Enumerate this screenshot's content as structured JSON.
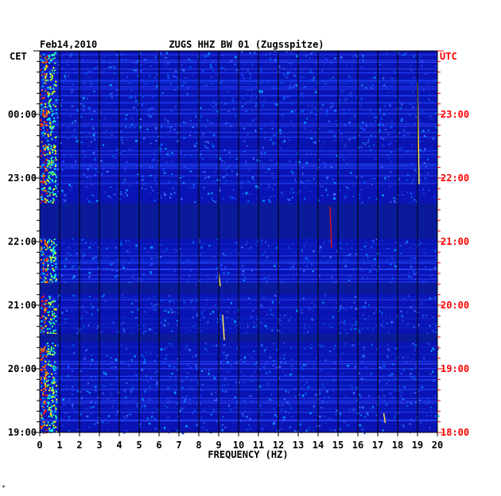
{
  "chart_data": {
    "type": "heatmap",
    "date": "Feb14,2010",
    "title": "ZUGS HHZ BW 01 (Zugsspitze)",
    "left_axis_label": "CET",
    "right_axis_label": "UTC",
    "xlabel": "FREQUENCY (HZ)",
    "x_ticks": [
      0,
      1,
      2,
      3,
      4,
      5,
      6,
      7,
      8,
      9,
      10,
      11,
      12,
      13,
      14,
      15,
      16,
      17,
      18,
      19,
      20
    ],
    "xlim": [
      0,
      20
    ],
    "left_ticks": [
      "00:00",
      "23:00",
      "22:00",
      "21:00",
      "20:00",
      "19:00"
    ],
    "right_ticks": [
      "23:00",
      "22:00",
      "21:00",
      "20:00",
      "19:00",
      "18:00"
    ],
    "ylim_hours_before_top": [
      0,
      6
    ],
    "quiet_bands_hours": [
      [
        2.4,
        2.95
      ],
      [
        3.65,
        3.82
      ],
      [
        4.45,
        4.58
      ]
    ],
    "features": [
      {
        "freq_hz": 19.0,
        "hours": [
          0.5,
          2.1
        ]
      },
      {
        "freq_hz": 14.6,
        "hours": [
          2.45,
          3.1
        ]
      },
      {
        "freq_hz": 9.0,
        "hours": [
          3.5,
          3.7
        ]
      },
      {
        "freq_hz": 9.2,
        "hours": [
          4.15,
          4.55
        ]
      },
      {
        "freq_hz": 17.3,
        "hours": [
          5.7,
          5.85
        ]
      }
    ],
    "colors": {
      "background": "#0a14b4",
      "quiet": "#0a1a9a",
      "grid": "#000000",
      "right_axis": "#ff0000",
      "low_freq_hot": "#ff2000"
    }
  },
  "footer_mark": "*"
}
